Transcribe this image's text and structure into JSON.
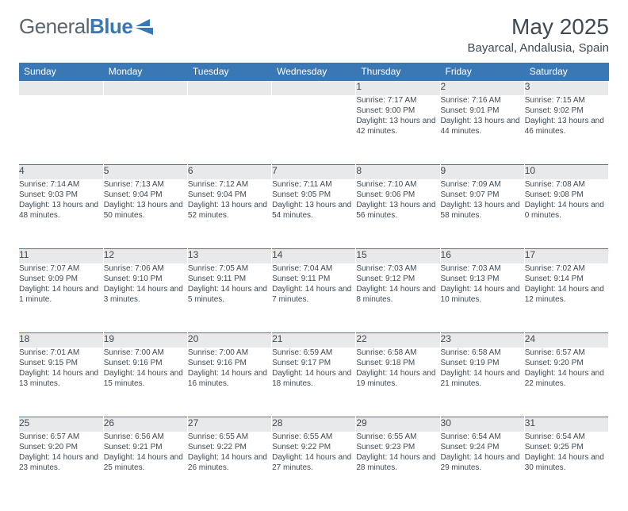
{
  "logo": {
    "text1": "General",
    "text2": "Blue"
  },
  "title": "May 2025",
  "location": "Bayarcal, Andalusia, Spain",
  "headers": [
    "Sunday",
    "Monday",
    "Tuesday",
    "Wednesday",
    "Thursday",
    "Friday",
    "Saturday"
  ],
  "colors": {
    "header_bg": "#3a78b5",
    "daynum_bg": "#e7e9eb",
    "border": "#3a78b5",
    "text": "#3f4a52"
  },
  "weeks": [
    [
      null,
      null,
      null,
      null,
      {
        "n": "1",
        "sr": "Sunrise: 7:17 AM",
        "ss": "Sunset: 9:00 PM",
        "dl": "Daylight: 13 hours and 42 minutes."
      },
      {
        "n": "2",
        "sr": "Sunrise: 7:16 AM",
        "ss": "Sunset: 9:01 PM",
        "dl": "Daylight: 13 hours and 44 minutes."
      },
      {
        "n": "3",
        "sr": "Sunrise: 7:15 AM",
        "ss": "Sunset: 9:02 PM",
        "dl": "Daylight: 13 hours and 46 minutes."
      }
    ],
    [
      {
        "n": "4",
        "sr": "Sunrise: 7:14 AM",
        "ss": "Sunset: 9:03 PM",
        "dl": "Daylight: 13 hours and 48 minutes."
      },
      {
        "n": "5",
        "sr": "Sunrise: 7:13 AM",
        "ss": "Sunset: 9:04 PM",
        "dl": "Daylight: 13 hours and 50 minutes."
      },
      {
        "n": "6",
        "sr": "Sunrise: 7:12 AM",
        "ss": "Sunset: 9:04 PM",
        "dl": "Daylight: 13 hours and 52 minutes."
      },
      {
        "n": "7",
        "sr": "Sunrise: 7:11 AM",
        "ss": "Sunset: 9:05 PM",
        "dl": "Daylight: 13 hours and 54 minutes."
      },
      {
        "n": "8",
        "sr": "Sunrise: 7:10 AM",
        "ss": "Sunset: 9:06 PM",
        "dl": "Daylight: 13 hours and 56 minutes."
      },
      {
        "n": "9",
        "sr": "Sunrise: 7:09 AM",
        "ss": "Sunset: 9:07 PM",
        "dl": "Daylight: 13 hours and 58 minutes."
      },
      {
        "n": "10",
        "sr": "Sunrise: 7:08 AM",
        "ss": "Sunset: 9:08 PM",
        "dl": "Daylight: 14 hours and 0 minutes."
      }
    ],
    [
      {
        "n": "11",
        "sr": "Sunrise: 7:07 AM",
        "ss": "Sunset: 9:09 PM",
        "dl": "Daylight: 14 hours and 1 minute."
      },
      {
        "n": "12",
        "sr": "Sunrise: 7:06 AM",
        "ss": "Sunset: 9:10 PM",
        "dl": "Daylight: 14 hours and 3 minutes."
      },
      {
        "n": "13",
        "sr": "Sunrise: 7:05 AM",
        "ss": "Sunset: 9:11 PM",
        "dl": "Daylight: 14 hours and 5 minutes."
      },
      {
        "n": "14",
        "sr": "Sunrise: 7:04 AM",
        "ss": "Sunset: 9:11 PM",
        "dl": "Daylight: 14 hours and 7 minutes."
      },
      {
        "n": "15",
        "sr": "Sunrise: 7:03 AM",
        "ss": "Sunset: 9:12 PM",
        "dl": "Daylight: 14 hours and 8 minutes."
      },
      {
        "n": "16",
        "sr": "Sunrise: 7:03 AM",
        "ss": "Sunset: 9:13 PM",
        "dl": "Daylight: 14 hours and 10 minutes."
      },
      {
        "n": "17",
        "sr": "Sunrise: 7:02 AM",
        "ss": "Sunset: 9:14 PM",
        "dl": "Daylight: 14 hours and 12 minutes."
      }
    ],
    [
      {
        "n": "18",
        "sr": "Sunrise: 7:01 AM",
        "ss": "Sunset: 9:15 PM",
        "dl": "Daylight: 14 hours and 13 minutes."
      },
      {
        "n": "19",
        "sr": "Sunrise: 7:00 AM",
        "ss": "Sunset: 9:16 PM",
        "dl": "Daylight: 14 hours and 15 minutes."
      },
      {
        "n": "20",
        "sr": "Sunrise: 7:00 AM",
        "ss": "Sunset: 9:16 PM",
        "dl": "Daylight: 14 hours and 16 minutes."
      },
      {
        "n": "21",
        "sr": "Sunrise: 6:59 AM",
        "ss": "Sunset: 9:17 PM",
        "dl": "Daylight: 14 hours and 18 minutes."
      },
      {
        "n": "22",
        "sr": "Sunrise: 6:58 AM",
        "ss": "Sunset: 9:18 PM",
        "dl": "Daylight: 14 hours and 19 minutes."
      },
      {
        "n": "23",
        "sr": "Sunrise: 6:58 AM",
        "ss": "Sunset: 9:19 PM",
        "dl": "Daylight: 14 hours and 21 minutes."
      },
      {
        "n": "24",
        "sr": "Sunrise: 6:57 AM",
        "ss": "Sunset: 9:20 PM",
        "dl": "Daylight: 14 hours and 22 minutes."
      }
    ],
    [
      {
        "n": "25",
        "sr": "Sunrise: 6:57 AM",
        "ss": "Sunset: 9:20 PM",
        "dl": "Daylight: 14 hours and 23 minutes."
      },
      {
        "n": "26",
        "sr": "Sunrise: 6:56 AM",
        "ss": "Sunset: 9:21 PM",
        "dl": "Daylight: 14 hours and 25 minutes."
      },
      {
        "n": "27",
        "sr": "Sunrise: 6:55 AM",
        "ss": "Sunset: 9:22 PM",
        "dl": "Daylight: 14 hours and 26 minutes."
      },
      {
        "n": "28",
        "sr": "Sunrise: 6:55 AM",
        "ss": "Sunset: 9:22 PM",
        "dl": "Daylight: 14 hours and 27 minutes."
      },
      {
        "n": "29",
        "sr": "Sunrise: 6:55 AM",
        "ss": "Sunset: 9:23 PM",
        "dl": "Daylight: 14 hours and 28 minutes."
      },
      {
        "n": "30",
        "sr": "Sunrise: 6:54 AM",
        "ss": "Sunset: 9:24 PM",
        "dl": "Daylight: 14 hours and 29 minutes."
      },
      {
        "n": "31",
        "sr": "Sunrise: 6:54 AM",
        "ss": "Sunset: 9:25 PM",
        "dl": "Daylight: 14 hours and 30 minutes."
      }
    ]
  ]
}
